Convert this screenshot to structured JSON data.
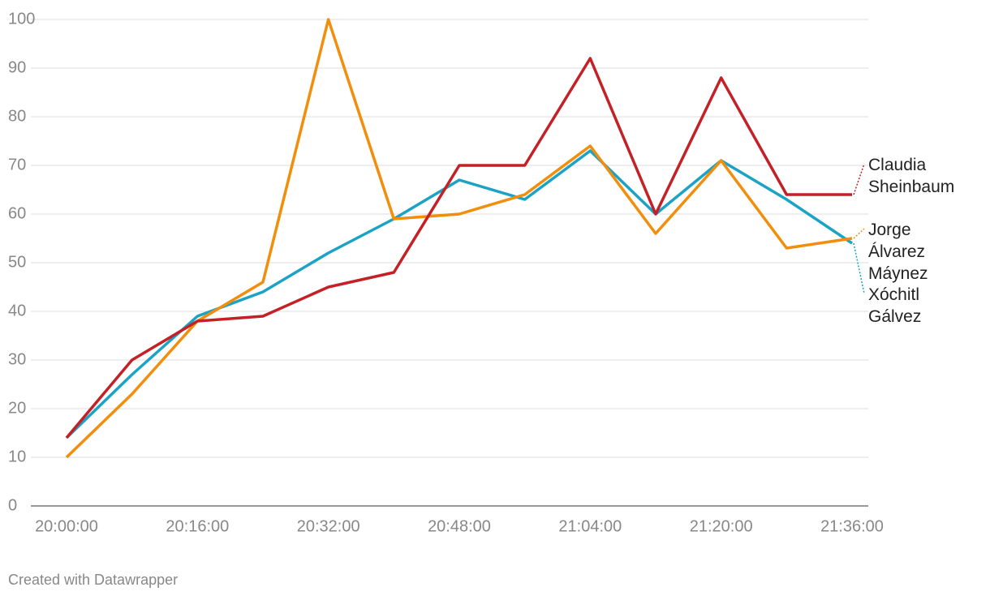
{
  "chart_data": {
    "type": "line",
    "categories": [
      "20:00:00",
      null,
      "20:16:00",
      null,
      "20:32:00",
      null,
      "20:48:00",
      null,
      "21:04:00",
      null,
      "21:20:00",
      null,
      "21:36:00"
    ],
    "series": [
      {
        "name": "Claudia Sheinbaum",
        "color": "#c42127",
        "values": [
          14,
          30,
          38,
          39,
          45,
          48,
          70,
          70,
          92,
          60,
          88,
          64,
          64
        ]
      },
      {
        "name": "Jorge Álvarez Máynez",
        "color": "#f28e0c",
        "values": [
          10,
          23,
          38,
          46,
          100,
          59,
          60,
          64,
          74,
          56,
          71,
          53,
          55
        ]
      },
      {
        "name": "Xóchitl Gálvez",
        "color": "#1ba3c6",
        "values": [
          14,
          27,
          39,
          44,
          52,
          59,
          67,
          63,
          73,
          60,
          71,
          63,
          54
        ]
      }
    ],
    "ylim": [
      0,
      100
    ],
    "yticks": [
      0,
      10,
      20,
      30,
      40,
      50,
      60,
      70,
      80,
      90,
      100
    ],
    "grid": true,
    "footer": "Created with Datawrapper"
  }
}
